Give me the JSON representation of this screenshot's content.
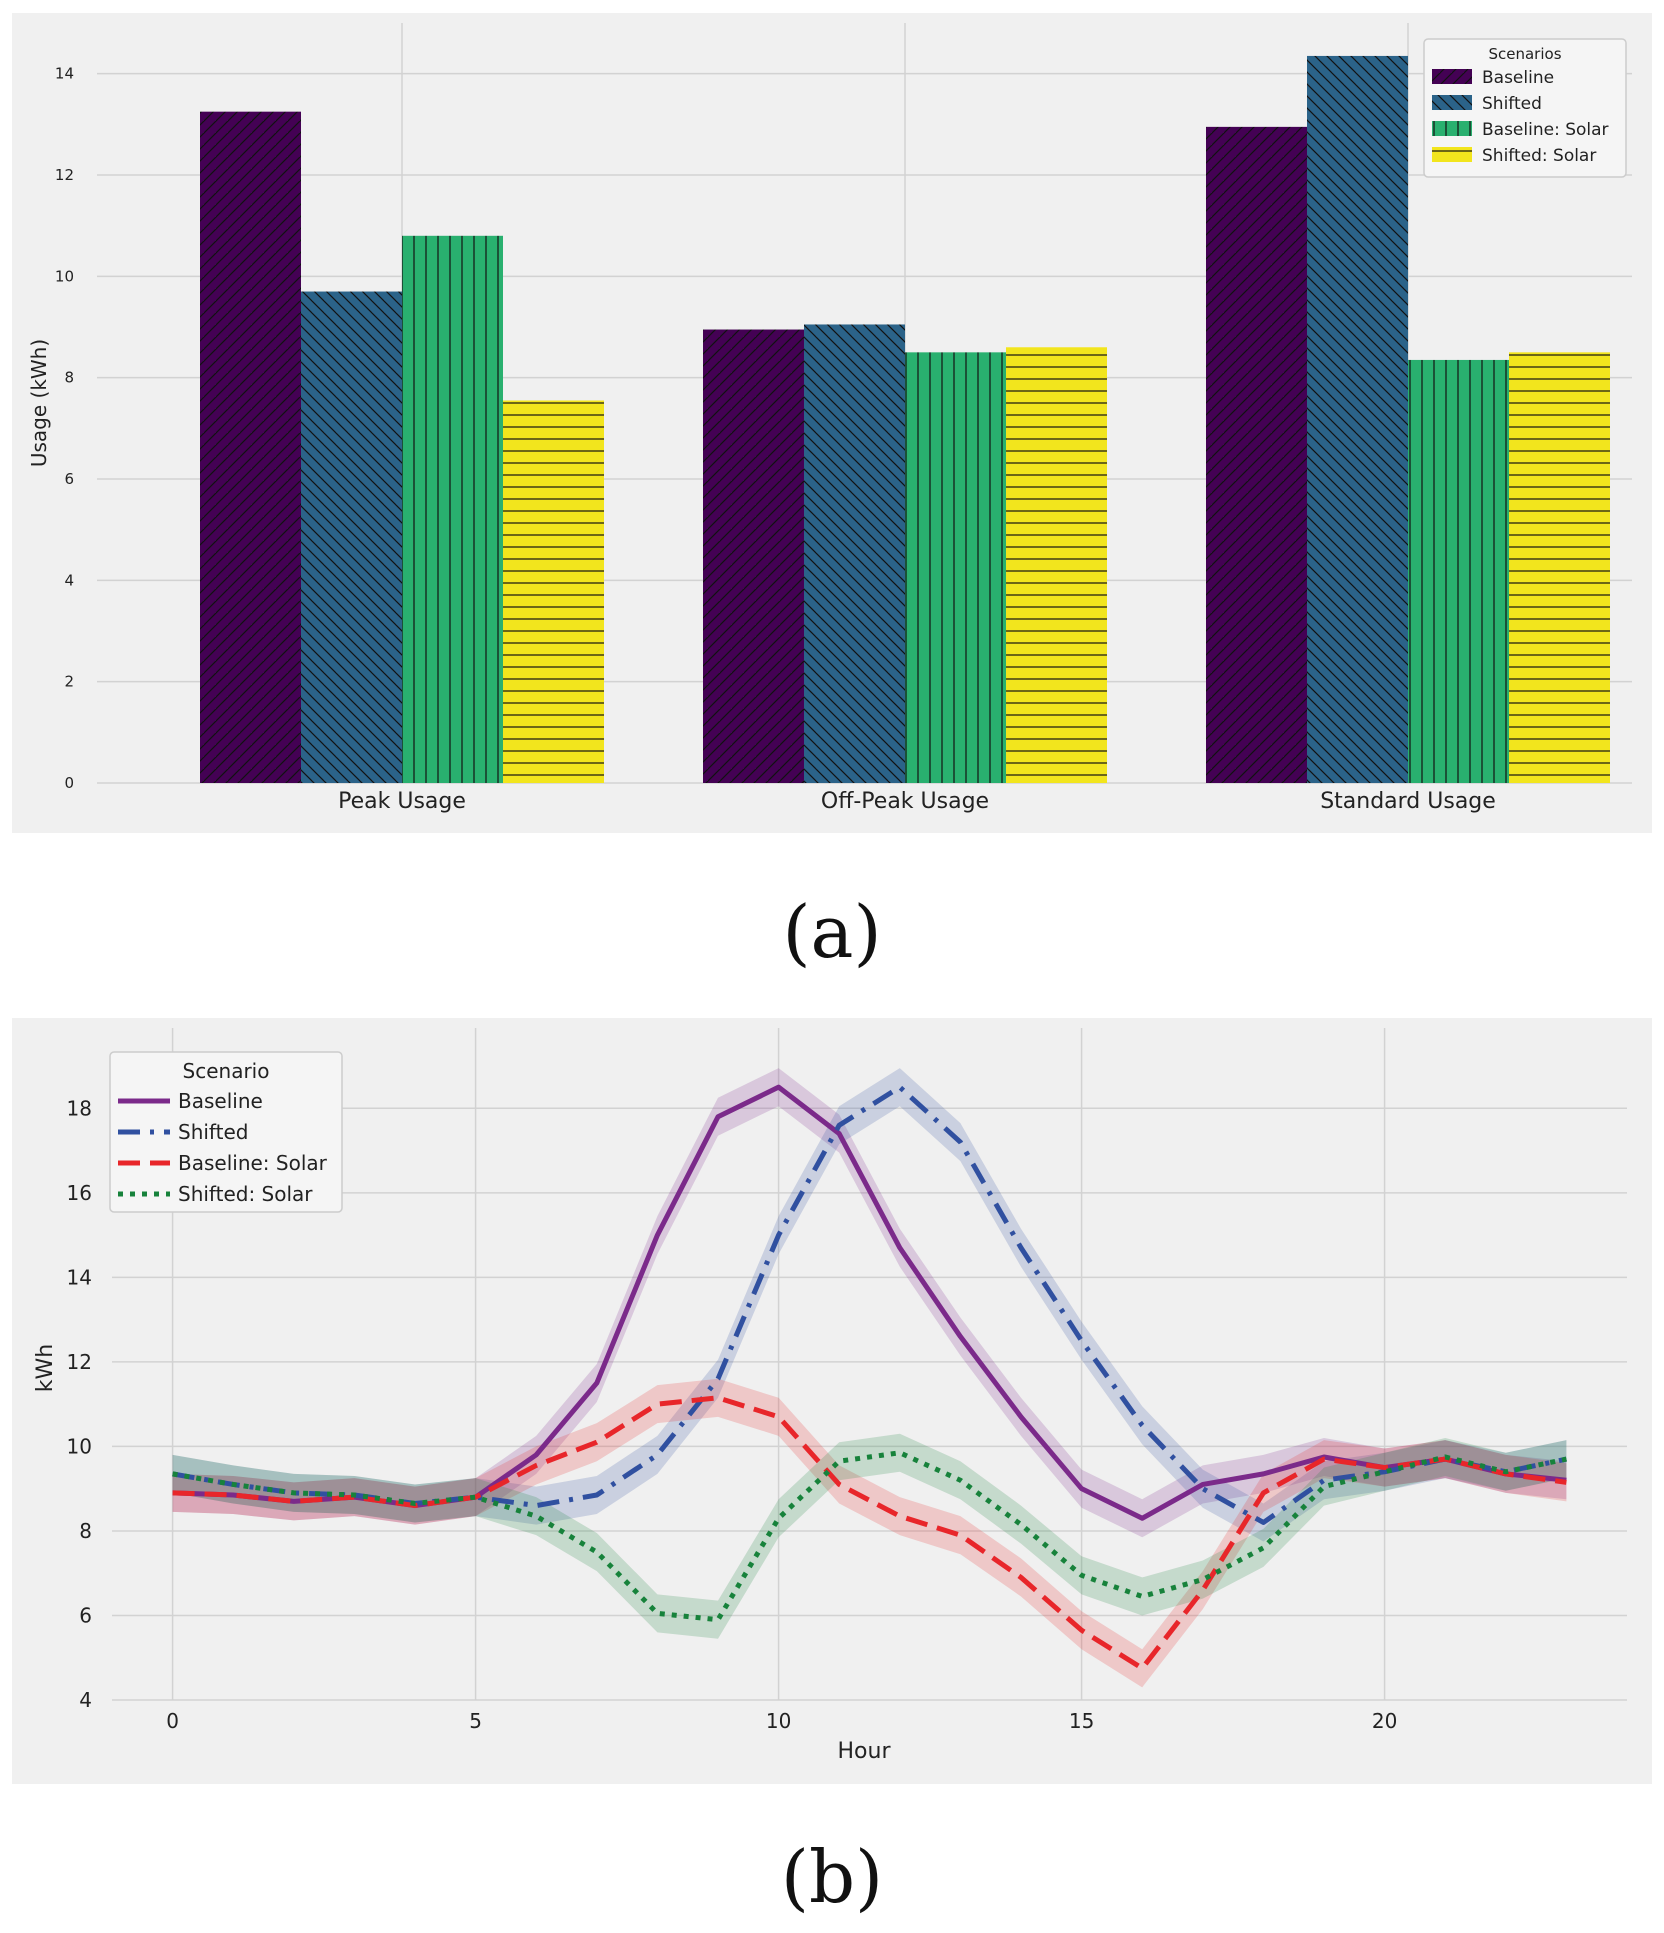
{
  "captions": {
    "a": "(a)",
    "b": "(b)"
  },
  "chart_data": [
    {
      "type": "bar",
      "categories": [
        "Peak Usage",
        "Off-Peak Usage",
        "Standard Usage"
      ],
      "series": [
        {
          "name": "Baseline",
          "values": [
            13.25,
            8.95,
            12.95
          ],
          "color": "#440154",
          "hatch": "diag-up"
        },
        {
          "name": "Shifted",
          "values": [
            9.7,
            9.05,
            14.35
          ],
          "color": "#2b6389",
          "hatch": "diag-down"
        },
        {
          "name": "Baseline: Solar",
          "values": [
            10.8,
            8.5,
            8.35
          ],
          "color": "#29b06f",
          "hatch": "vertical"
        },
        {
          "name": "Shifted: Solar",
          "values": [
            7.55,
            8.6,
            8.5
          ],
          "color": "#f2e51d",
          "hatch": "horizontal"
        }
      ],
      "title": "",
      "xlabel": "",
      "ylabel": "Usage (kWh)",
      "ylim": [
        0,
        15
      ],
      "yticks": [
        "0",
        "2",
        "4",
        "6",
        "8",
        "10",
        "12",
        "14"
      ],
      "legend": {
        "title": "Scenarios",
        "position": "top-right"
      },
      "grid": true
    },
    {
      "type": "line",
      "x": [
        0,
        1,
        2,
        3,
        4,
        5,
        6,
        7,
        8,
        9,
        10,
        11,
        12,
        13,
        14,
        15,
        16,
        17,
        18,
        19,
        20,
        21,
        22,
        23
      ],
      "series": [
        {
          "name": "Baseline",
          "color": "#7b2a8a",
          "dash": "solid",
          "values": [
            8.9,
            8.85,
            8.7,
            8.8,
            8.6,
            8.8,
            9.8,
            11.5,
            15.0,
            17.8,
            18.5,
            17.4,
            14.7,
            12.6,
            10.7,
            9.0,
            8.3,
            9.1,
            9.35,
            9.75,
            9.5,
            9.7,
            9.35,
            9.2
          ]
        },
        {
          "name": "Shifted",
          "color": "#3050a0",
          "dash": "dashdot",
          "values": [
            9.35,
            9.1,
            8.9,
            8.85,
            8.65,
            8.8,
            8.6,
            8.85,
            9.8,
            11.6,
            15.0,
            17.6,
            18.5,
            17.2,
            14.7,
            12.5,
            10.5,
            9.0,
            8.2,
            9.2,
            9.4,
            9.7,
            9.4,
            9.7
          ]
        },
        {
          "name": "Baseline: Solar",
          "color": "#e8262a",
          "dash": "dashed",
          "values": [
            8.9,
            8.85,
            8.7,
            8.8,
            8.6,
            8.8,
            9.55,
            10.1,
            11.0,
            11.15,
            10.7,
            9.1,
            8.35,
            7.9,
            6.9,
            5.65,
            4.75,
            6.6,
            8.9,
            9.7,
            9.5,
            9.7,
            9.35,
            9.15
          ]
        },
        {
          "name": "Shifted: Solar",
          "color": "#17823b",
          "dash": "dotted",
          "values": [
            9.35,
            9.1,
            8.9,
            8.85,
            8.65,
            8.8,
            8.35,
            7.5,
            6.05,
            5.9,
            8.3,
            9.65,
            9.85,
            9.2,
            8.15,
            6.95,
            6.45,
            6.85,
            7.6,
            9.05,
            9.4,
            9.75,
            9.4,
            9.7
          ]
        }
      ],
      "xlabel": "Hour",
      "ylabel": "kWh",
      "xlim": [
        -1,
        24
      ],
      "ylim": [
        4,
        19.9
      ],
      "xticks": [
        "0",
        "5",
        "10",
        "15",
        "20"
      ],
      "yticks": [
        "4",
        "6",
        "8",
        "10",
        "12",
        "14",
        "16",
        "18"
      ],
      "legend": {
        "title": "Scenario",
        "position": "top-left"
      },
      "grid": true
    }
  ]
}
